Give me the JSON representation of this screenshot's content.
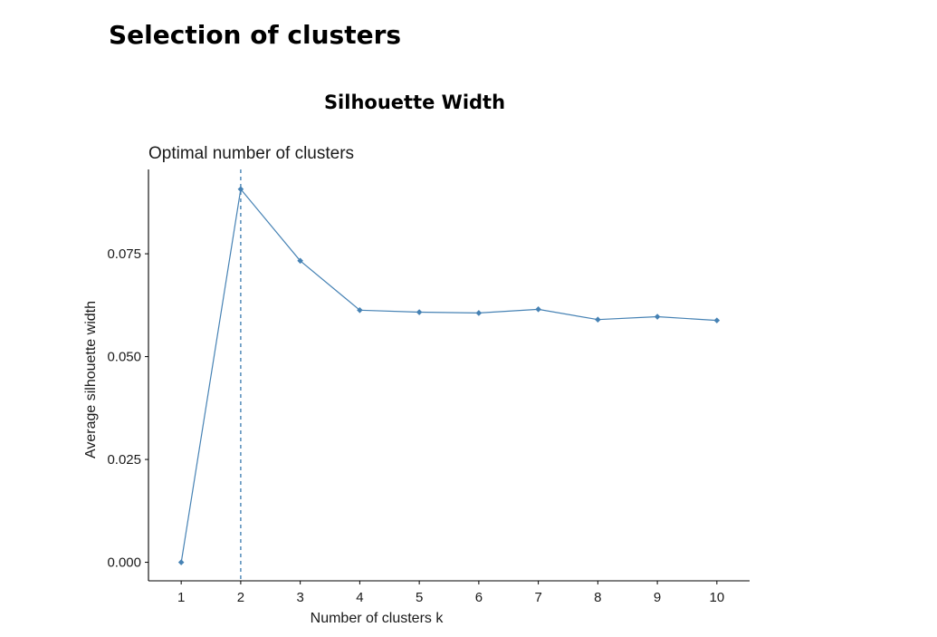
{
  "page": {
    "title": "Selection of clusters",
    "section_title": "Silhouette Width"
  },
  "colors": {
    "series": "#4682b4",
    "axis": "#000000"
  },
  "chart_data": {
    "type": "line",
    "title": "Optimal number of clusters",
    "xlabel": "Number of clusters k",
    "ylabel": "Average silhouette width",
    "x": [
      1,
      2,
      3,
      4,
      5,
      6,
      7,
      8,
      9,
      10
    ],
    "series": [
      {
        "values": [
          0.0,
          0.0907,
          0.0733,
          0.0613,
          0.0608,
          0.0606,
          0.0615,
          0.059,
          0.0597,
          0.0588
        ]
      }
    ],
    "xticks": [
      "1",
      "2",
      "3",
      "4",
      "5",
      "6",
      "7",
      "8",
      "9",
      "10"
    ],
    "yticks": [
      0.0,
      0.025,
      0.05,
      0.075
    ],
    "ytick_labels": [
      "0.000",
      "0.025",
      "0.050",
      "0.075"
    ],
    "ylim": [
      -0.0045,
      0.0955
    ],
    "optimal_k": 2,
    "grid": false,
    "legend": "none"
  }
}
